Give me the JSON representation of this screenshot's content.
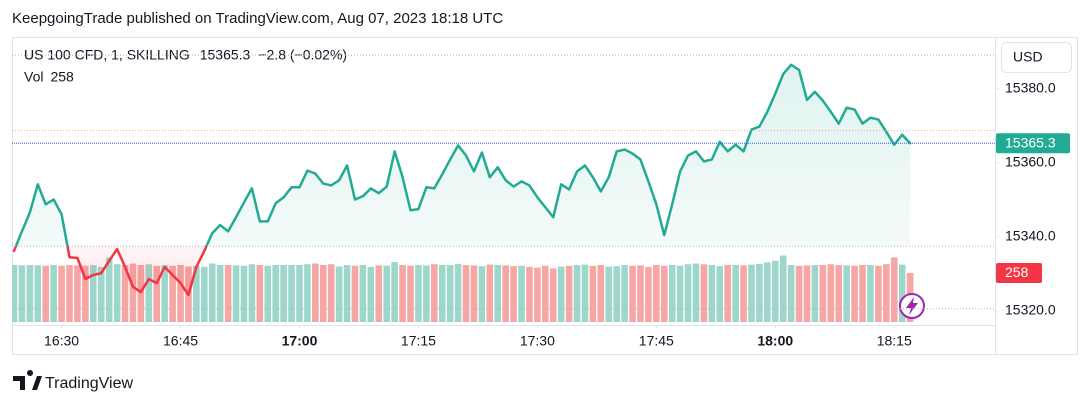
{
  "chart_data": {
    "type": "line",
    "header": "KeepgoingTrade published on TradingView.com, Aug 07, 2023 18:18 UTC",
    "title": "US 100 CFD, 1, SKILLING",
    "change": "−2.8 (−0.02%)",
    "currency": "USD",
    "brand": "TradingView",
    "categories": [
      null,
      null,
      null,
      null,
      null,
      null,
      "16:30",
      null,
      null,
      null,
      null,
      null,
      null,
      null,
      null,
      null,
      null,
      null,
      null,
      null,
      null,
      "16:45",
      null,
      null,
      null,
      null,
      null,
      null,
      null,
      null,
      null,
      null,
      null,
      null,
      null,
      null,
      "17:00",
      null,
      null,
      null,
      null,
      null,
      null,
      null,
      null,
      null,
      null,
      null,
      null,
      null,
      null,
      "17:15",
      null,
      null,
      null,
      null,
      null,
      null,
      null,
      null,
      null,
      null,
      null,
      null,
      null,
      null,
      "17:30",
      null,
      null,
      null,
      null,
      null,
      null,
      null,
      null,
      null,
      null,
      null,
      null,
      null,
      null,
      "17:45",
      null,
      null,
      null,
      null,
      null,
      null,
      null,
      null,
      null,
      null,
      null,
      null,
      null,
      null,
      "18:00",
      null,
      null,
      null,
      null,
      null,
      null,
      null,
      null,
      null,
      null,
      null,
      null,
      null,
      null,
      "18:15",
      null,
      null
    ],
    "price": {
      "values": [
        15336.2,
        15341.5,
        15346.6,
        15354.2,
        15348.8,
        15350.1,
        15346.1,
        15334.5,
        15334.3,
        15328.6,
        15329.7,
        15330.2,
        15333.5,
        15336.7,
        15331.9,
        15326.5,
        15325.1,
        15328.6,
        15327.5,
        15331.9,
        15329.7,
        15327.5,
        15324.3,
        15331.9,
        15336.2,
        15341.0,
        15343.2,
        15341.5,
        15345.3,
        15349.3,
        15353.1,
        15344.2,
        15344.2,
        15349.1,
        15350.7,
        15353.4,
        15353.4,
        15357.9,
        15357.1,
        15354.4,
        15353.9,
        15355.3,
        15359.3,
        15350.1,
        15351.0,
        15353.1,
        15351.8,
        15353.6,
        15363.1,
        15356.1,
        15347.2,
        15347.5,
        15353.4,
        15353.1,
        15356.9,
        15360.9,
        15364.7,
        15362.0,
        15357.7,
        15362.8,
        15356.1,
        15358.8,
        15355.3,
        15353.6,
        15355.0,
        15353.9,
        15350.7,
        15348.0,
        15345.3,
        15354.2,
        15352.8,
        15357.7,
        15359.3,
        15356.1,
        15352.3,
        15356.1,
        15363.1,
        15363.6,
        15362.5,
        15360.9,
        15355.0,
        15348.8,
        15340.5,
        15348.8,
        15357.7,
        15362.0,
        15363.1,
        15360.4,
        15360.9,
        15365.7,
        15363.1,
        15364.9,
        15363.1,
        15369.0,
        15369.8,
        15373.8,
        15378.7,
        15384.0,
        15386.5,
        15385.1,
        15377.0,
        15379.2,
        15376.8,
        15373.8,
        15370.6,
        15374.9,
        15374.4,
        15370.6,
        15372.2,
        15371.7,
        15368.4,
        15364.9,
        15367.6,
        15365.3
      ],
      "up_color": "#22ab94",
      "down_color": "#f23645",
      "last_line_color": "#2962ff"
    },
    "volume": {
      "name": "Vol",
      "values": [
        300,
        298,
        300,
        298,
        296,
        300,
        296,
        300,
        298,
        296,
        300,
        290,
        340,
        304,
        300,
        308,
        300,
        304,
        296,
        300,
        296,
        300,
        292,
        296,
        290,
        308,
        300,
        300,
        298,
        296,
        304,
        300,
        296,
        300,
        300,
        300,
        300,
        304,
        308,
        300,
        304,
        292,
        300,
        296,
        300,
        290,
        298,
        296,
        316,
        300,
        296,
        300,
        298,
        304,
        300,
        300,
        306,
        300,
        298,
        294,
        302,
        300,
        298,
        294,
        296,
        290,
        286,
        296,
        282,
        292,
        296,
        300,
        302,
        296,
        300,
        292,
        294,
        300,
        296,
        298,
        290,
        300,
        296,
        300,
        296,
        304,
        308,
        304,
        300,
        294,
        300,
        300,
        298,
        302,
        306,
        314,
        322,
        350,
        300,
        296,
        298,
        300,
        300,
        304,
        300,
        298,
        296,
        300,
        300,
        296,
        304,
        340,
        302,
        258
      ],
      "up_color": "#9dd7cc",
      "down_color": "#f6a6a4",
      "vlim": [
        0,
        500
      ]
    },
    "baseline": 15337.5,
    "price_lines": [
      {
        "value": 15389.1,
        "color": "#b2b5be"
      },
      {
        "value": 15368.7,
        "color": "#f3a3bd"
      },
      {
        "value": 15320.6,
        "color": "#b2b5be"
      }
    ],
    "ylim": [
      15316.2,
      15394.0
    ],
    "yticks": [
      {
        "value": 15320,
        "label": "15320.0"
      },
      {
        "value": 15340,
        "label": "15340.0"
      },
      {
        "value": 15360,
        "label": "15360.0"
      },
      {
        "value": 15380,
        "label": "15380.0"
      }
    ],
    "grid": false
  }
}
